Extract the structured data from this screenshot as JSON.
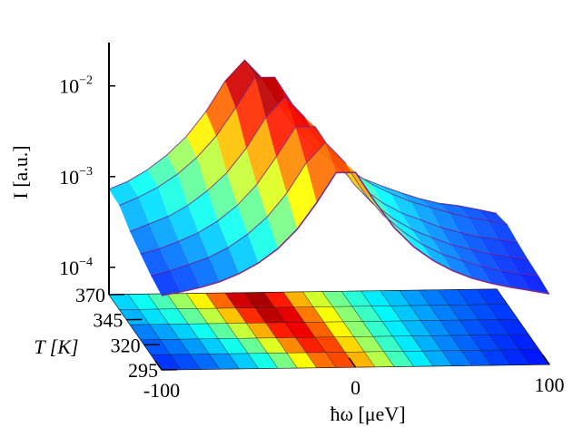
{
  "chart_data": {
    "type": "surface3d",
    "x_label": "ħω [μeV]",
    "y_label": "T [K]",
    "z_label": "I [a.u.]",
    "zlog": true,
    "line_color": "#7b2d8e",
    "xlim": [
      -100,
      100
    ],
    "ylim": [
      295,
      370
    ],
    "zlim": [
      5e-05,
      0.03
    ],
    "xticks": [
      -100,
      0,
      100
    ],
    "yticks": [
      295,
      320,
      345,
      370
    ],
    "zticks": [
      {
        "value": 0.0001,
        "label": "10",
        "exponent": "−4"
      },
      {
        "value": 0.001,
        "label": "10",
        "exponent": "−3"
      },
      {
        "value": 0.01,
        "label": "10",
        "exponent": "−2"
      }
    ],
    "x": [
      -100,
      -90,
      -80,
      -70,
      -60,
      -50,
      -40,
      -30,
      -20,
      -10,
      0,
      10,
      20,
      30,
      40,
      50,
      60,
      70,
      80,
      90,
      100
    ],
    "y": [
      295,
      310,
      325,
      340,
      355,
      370
    ],
    "values": [
      [
        0.00033,
        0.00036,
        0.0004,
        0.00046,
        0.00056,
        0.00073,
        0.00104,
        0.0017,
        0.0033,
        0.007,
        0.007,
        0.0033,
        0.0017,
        0.00104,
        0.00073,
        0.00056,
        0.00046,
        0.0004,
        0.00036,
        0.00033,
        0.0003
      ],
      [
        0.00037,
        0.00042,
        0.00049,
        0.00058,
        0.00074,
        0.00103,
        0.00158,
        0.00285,
        0.0061,
        0.0102,
        0.0061,
        0.00285,
        0.00158,
        0.00103,
        0.00074,
        0.00058,
        0.00049,
        0.00042,
        0.00037,
        0.00034,
        0.00032
      ],
      [
        0.00044,
        0.0005,
        0.0006,
        0.00074,
        0.00099,
        0.00146,
        0.00244,
        0.0049,
        0.0104,
        0.0104,
        0.0049,
        0.00244,
        0.00146,
        0.00099,
        0.00074,
        0.0006,
        0.0005,
        0.00044,
        0.00039,
        0.00036,
        0.00033
      ],
      [
        0.00053,
        0.00064,
        0.00077,
        0.00101,
        0.00145,
        0.00227,
        0.0042,
        0.00905,
        0.0152,
        0.00905,
        0.0042,
        0.00227,
        0.00145,
        0.00101,
        0.00077,
        0.00064,
        0.00053,
        0.00046,
        0.00041,
        0.00038,
        0.00035
      ],
      [
        0.0007,
        0.00086,
        0.0011,
        0.00152,
        0.0023,
        0.00394,
        0.008,
        0.0172,
        0.0172,
        0.008,
        0.00394,
        0.0023,
        0.00152,
        0.0011,
        0.00086,
        0.0007,
        0.0006,
        0.00052,
        0.00046,
        0.00042,
        0.00038
      ],
      [
        0.00072,
        0.00088,
        0.00117,
        0.00169,
        0.00268,
        0.00497,
        0.0108,
        0.0182,
        0.0108,
        0.00497,
        0.00268,
        0.00169,
        0.00117,
        0.00088,
        0.00072,
        0.0006,
        0.00051,
        0.00045,
        0.00042,
        0.00038,
        0.00034
      ]
    ]
  }
}
